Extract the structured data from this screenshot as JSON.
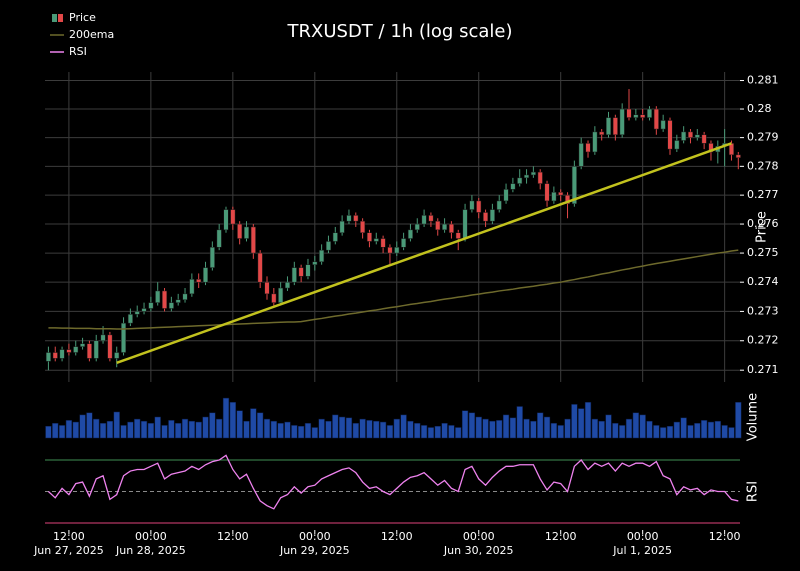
{
  "chart_data": [
    {
      "type": "candlestick",
      "title": "TRXUSDT / 1h (log scale)",
      "ylabel": "Price",
      "log_scale": true,
      "grid": true,
      "up_color": "#4a9a78",
      "down_color": "#e24848",
      "xlim": [
        -0.5,
        101.25
      ],
      "ylim": [
        0.2706,
        0.2813
      ],
      "yticks": [
        0.271,
        0.272,
        0.273,
        0.274,
        0.275,
        0.276,
        0.277,
        0.278,
        0.279,
        0.28,
        0.281
      ],
      "series": [
        {
          "name": "Price",
          "values": [
            [
              0.2713,
              0.2718,
              0.271,
              0.2716
            ],
            [
              0.2716,
              0.2718,
              0.2713,
              0.2714
            ],
            [
              0.2714,
              0.2718,
              0.2713,
              0.2717
            ],
            [
              0.2717,
              0.2719,
              0.2715,
              0.2716
            ],
            [
              0.2716,
              0.272,
              0.2715,
              0.2718
            ],
            [
              0.2718,
              0.2721,
              0.2717,
              0.2719
            ],
            [
              0.2719,
              0.272,
              0.2713,
              0.2714
            ],
            [
              0.2714,
              0.2722,
              0.2713,
              0.272
            ],
            [
              0.272,
              0.2725,
              0.2719,
              0.2722
            ],
            [
              0.2722,
              0.2723,
              0.2713,
              0.2714
            ],
            [
              0.2714,
              0.2718,
              0.2711,
              0.2716
            ],
            [
              0.2716,
              0.2728,
              0.2715,
              0.2726
            ],
            [
              0.2726,
              0.2731,
              0.2725,
              0.2729
            ],
            [
              0.2729,
              0.2732,
              0.2728,
              0.273
            ],
            [
              0.273,
              0.2733,
              0.2729,
              0.2731
            ],
            [
              0.2731,
              0.2735,
              0.273,
              0.2733
            ],
            [
              0.2733,
              0.274,
              0.2732,
              0.2737
            ],
            [
              0.2737,
              0.2738,
              0.273,
              0.2731
            ],
            [
              0.2731,
              0.2735,
              0.273,
              0.2733
            ],
            [
              0.2733,
              0.2736,
              0.2732,
              0.2734
            ],
            [
              0.2734,
              0.2738,
              0.2733,
              0.2736
            ],
            [
              0.2736,
              0.2743,
              0.2735,
              0.2741
            ],
            [
              0.2741,
              0.2743,
              0.2738,
              0.274
            ],
            [
              0.274,
              0.2747,
              0.2739,
              0.2745
            ],
            [
              0.2745,
              0.2754,
              0.2744,
              0.2752
            ],
            [
              0.2752,
              0.276,
              0.2751,
              0.2758
            ],
            [
              0.2758,
              0.2766,
              0.2757,
              0.2765
            ],
            [
              0.2765,
              0.2766,
              0.2758,
              0.276
            ],
            [
              0.276,
              0.2761,
              0.2753,
              0.2755
            ],
            [
              0.2755,
              0.2761,
              0.2754,
              0.2759
            ],
            [
              0.2759,
              0.276,
              0.2748,
              0.275
            ],
            [
              0.275,
              0.2751,
              0.2738,
              0.274
            ],
            [
              0.274,
              0.2742,
              0.2734,
              0.2736
            ],
            [
              0.2736,
              0.2738,
              0.2732,
              0.2733
            ],
            [
              0.2733,
              0.274,
              0.2732,
              0.2738
            ],
            [
              0.2738,
              0.2742,
              0.2737,
              0.274
            ],
            [
              0.274,
              0.2747,
              0.2739,
              0.2745
            ],
            [
              0.2745,
              0.2746,
              0.274,
              0.2742
            ],
            [
              0.2742,
              0.2748,
              0.2741,
              0.2746
            ],
            [
              0.2746,
              0.2749,
              0.2744,
              0.2747
            ],
            [
              0.2747,
              0.2753,
              0.2746,
              0.2751
            ],
            [
              0.2751,
              0.2756,
              0.275,
              0.2754
            ],
            [
              0.2754,
              0.2759,
              0.2753,
              0.2757
            ],
            [
              0.2757,
              0.2763,
              0.2756,
              0.2761
            ],
            [
              0.2761,
              0.2765,
              0.276,
              0.2763
            ],
            [
              0.2763,
              0.2764,
              0.2759,
              0.2761
            ],
            [
              0.2761,
              0.2762,
              0.2755,
              0.2757
            ],
            [
              0.2757,
              0.2758,
              0.2752,
              0.2754
            ],
            [
              0.2754,
              0.2757,
              0.2753,
              0.2755
            ],
            [
              0.2755,
              0.2756,
              0.275,
              0.2752
            ],
            [
              0.2752,
              0.2753,
              0.2746,
              0.275
            ],
            [
              0.275,
              0.2754,
              0.2749,
              0.2752
            ],
            [
              0.2752,
              0.2757,
              0.2751,
              0.2755
            ],
            [
              0.2755,
              0.276,
              0.2754,
              0.2758
            ],
            [
              0.2758,
              0.2762,
              0.2757,
              0.276
            ],
            [
              0.276,
              0.2765,
              0.2759,
              0.2763
            ],
            [
              0.2763,
              0.2764,
              0.2759,
              0.2761
            ],
            [
              0.2761,
              0.2762,
              0.2756,
              0.2758
            ],
            [
              0.2758,
              0.2762,
              0.2757,
              0.276
            ],
            [
              0.276,
              0.2761,
              0.2755,
              0.2757
            ],
            [
              0.2757,
              0.2758,
              0.2751,
              0.2755
            ],
            [
              0.2755,
              0.2767,
              0.2754,
              0.2765
            ],
            [
              0.2765,
              0.277,
              0.2764,
              0.2768
            ],
            [
              0.2768,
              0.2769,
              0.2762,
              0.2764
            ],
            [
              0.2764,
              0.2765,
              0.2759,
              0.2761
            ],
            [
              0.2761,
              0.2767,
              0.276,
              0.2765
            ],
            [
              0.2765,
              0.277,
              0.2764,
              0.2768
            ],
            [
              0.2768,
              0.2774,
              0.2767,
              0.2772
            ],
            [
              0.2772,
              0.2776,
              0.2771,
              0.2774
            ],
            [
              0.2774,
              0.2779,
              0.2773,
              0.2776
            ],
            [
              0.2776,
              0.2779,
              0.2774,
              0.2777
            ],
            [
              0.2777,
              0.278,
              0.2776,
              0.2778
            ],
            [
              0.2778,
              0.2779,
              0.2772,
              0.2774
            ],
            [
              0.2774,
              0.2775,
              0.2766,
              0.2768
            ],
            [
              0.2768,
              0.2773,
              0.2767,
              0.2771
            ],
            [
              0.2771,
              0.2772,
              0.2768,
              0.277
            ],
            [
              0.277,
              0.2771,
              0.2762,
              0.2767
            ],
            [
              0.2767,
              0.2782,
              0.2766,
              0.278
            ],
            [
              0.278,
              0.279,
              0.2779,
              0.2788
            ],
            [
              0.2788,
              0.2789,
              0.2783,
              0.2785
            ],
            [
              0.2785,
              0.2794,
              0.2784,
              0.2792
            ],
            [
              0.2792,
              0.2793,
              0.2789,
              0.2791
            ],
            [
              0.2791,
              0.2799,
              0.279,
              0.2797
            ],
            [
              0.2797,
              0.2798,
              0.2789,
              0.2791
            ],
            [
              0.2791,
              0.2802,
              0.279,
              0.28
            ],
            [
              0.28,
              0.2807,
              0.2796,
              0.2797
            ],
            [
              0.2797,
              0.28,
              0.2796,
              0.2798
            ],
            [
              0.2798,
              0.28,
              0.2796,
              0.2797
            ],
            [
              0.2797,
              0.2801,
              0.2796,
              0.28
            ],
            [
              0.28,
              0.2801,
              0.2791,
              0.2793
            ],
            [
              0.2793,
              0.2798,
              0.2792,
              0.2796
            ],
            [
              0.2796,
              0.2797,
              0.2784,
              0.2786
            ],
            [
              0.2786,
              0.2791,
              0.2785,
              0.2789
            ],
            [
              0.2789,
              0.2794,
              0.2788,
              0.2792
            ],
            [
              0.2792,
              0.2793,
              0.2788,
              0.279
            ],
            [
              0.279,
              0.2793,
              0.2789,
              0.2791
            ],
            [
              0.2791,
              0.2792,
              0.2786,
              0.2788
            ],
            [
              0.2788,
              0.2789,
              0.2782,
              0.2785
            ],
            [
              0.2785,
              0.2789,
              0.2781,
              0.2787
            ],
            [
              0.2787,
              0.2793,
              0.278,
              0.2788
            ],
            [
              0.2788,
              0.2789,
              0.2782,
              0.2784
            ],
            [
              0.2784,
              0.2785,
              0.2779,
              0.2783
            ]
          ]
        },
        {
          "name": "200ema",
          "color": "#6e6a2c",
          "values": [
            0.27244,
            0.27244,
            0.27243,
            0.27243,
            0.27242,
            0.27242,
            0.27242,
            0.27241,
            0.27241,
            0.27241,
            0.2724,
            0.2724,
            0.27241,
            0.27242,
            0.27243,
            0.27244,
            0.27245,
            0.27246,
            0.27247,
            0.27248,
            0.27249,
            0.2725,
            0.27251,
            0.27252,
            0.27253,
            0.27254,
            0.27255,
            0.27256,
            0.27257,
            0.27258,
            0.27259,
            0.2726,
            0.27261,
            0.27262,
            0.27263,
            0.27264,
            0.27264,
            0.27265,
            0.27269,
            0.27273,
            0.27276,
            0.2728,
            0.27284,
            0.27287,
            0.27291,
            0.27294,
            0.27298,
            0.27302,
            0.27305,
            0.27309,
            0.27313,
            0.27316,
            0.2732,
            0.27324,
            0.27327,
            0.27331,
            0.27334,
            0.27338,
            0.27342,
            0.27345,
            0.27349,
            0.27352,
            0.27356,
            0.27359,
            0.27363,
            0.27366,
            0.2737,
            0.27373,
            0.27376,
            0.2738,
            0.27383,
            0.27386,
            0.2739,
            0.27393,
            0.27397,
            0.274,
            0.27405,
            0.27409,
            0.27414,
            0.27418,
            0.27423,
            0.27428,
            0.27432,
            0.27437,
            0.27442,
            0.27446,
            0.27451,
            0.27455,
            0.2746,
            0.27464,
            0.27468,
            0.27472,
            0.27476,
            0.2748,
            0.27484,
            0.27488,
            0.27492,
            0.27496,
            0.275,
            0.27503,
            0.27507,
            0.2751
          ]
        }
      ],
      "trendline": {
        "color": "#c2c21e",
        "x": [
          10,
          100
        ],
        "y": [
          0.27125,
          0.2788
        ]
      }
    },
    {
      "type": "bar",
      "ylabel": "Volume",
      "color": "#1f4aa6",
      "ylim": [
        0,
        100
      ],
      "xlim": [
        -0.5,
        101.25
      ],
      "values": [
        28,
        35,
        30,
        42,
        38,
        55,
        60,
        45,
        35,
        40,
        62,
        30,
        38,
        45,
        40,
        35,
        50,
        30,
        42,
        35,
        45,
        40,
        38,
        50,
        60,
        45,
        95,
        85,
        65,
        40,
        70,
        60,
        45,
        40,
        35,
        38,
        30,
        28,
        35,
        25,
        45,
        40,
        55,
        50,
        48,
        35,
        45,
        42,
        40,
        38,
        30,
        45,
        55,
        40,
        35,
        30,
        25,
        28,
        35,
        30,
        25,
        65,
        60,
        50,
        45,
        40,
        42,
        55,
        48,
        75,
        45,
        40,
        60,
        50,
        35,
        30,
        45,
        80,
        70,
        85,
        45,
        40,
        55,
        35,
        30,
        45,
        60,
        55,
        40,
        30,
        25,
        28,
        38,
        48,
        30,
        35,
        42,
        38,
        40,
        30,
        25,
        85
      ]
    },
    {
      "type": "line",
      "ylabel": "RSI",
      "ylim": [
        26.8,
        73.2
      ],
      "xlim": [
        -0.5,
        101.25
      ],
      "levels": [
        {
          "value": 70,
          "color": "#3f8f55"
        },
        {
          "value": 50,
          "color": "#8a8a8a"
        },
        {
          "value": 30,
          "color": "#e0457b"
        }
      ],
      "series": [
        {
          "name": "RSI",
          "color": "#ee82ee",
          "values": [
            50,
            46,
            52,
            48,
            55,
            56,
            47,
            58,
            60,
            45,
            48,
            60,
            63,
            64,
            64,
            66,
            68,
            58,
            61,
            62,
            63,
            66,
            64,
            67,
            69,
            70,
            73,
            64,
            58,
            61,
            52,
            44,
            41,
            39,
            46,
            48,
            53,
            49,
            53,
            54,
            58,
            60,
            62,
            64,
            65,
            62,
            56,
            52,
            53,
            50,
            48,
            52,
            56,
            59,
            60,
            62,
            58,
            54,
            57,
            52,
            50,
            64,
            66,
            58,
            54,
            59,
            63,
            66,
            66,
            67,
            67,
            67,
            58,
            51,
            56,
            55,
            50,
            66,
            70,
            64,
            68,
            66,
            68,
            63,
            68,
            66,
            68,
            68,
            66,
            69,
            60,
            58,
            48,
            53,
            51,
            52,
            48,
            51,
            50,
            50,
            45,
            44
          ]
        }
      ],
      "xticks": [
        {
          "value": 3,
          "label": "12:00",
          "date": "Jun 27, 2025"
        },
        {
          "value": 15,
          "label": "00:00",
          "date": "Jun 28, 2025"
        },
        {
          "value": 27,
          "label": "12:00"
        },
        {
          "value": 39,
          "label": "00:00",
          "date": "Jun 29, 2025"
        },
        {
          "value": 51,
          "label": "12:00"
        },
        {
          "value": 63,
          "label": "00:00",
          "date": "Jun 30, 2025"
        },
        {
          "value": 75,
          "label": "12:00"
        },
        {
          "value": 87,
          "label": "00:00",
          "date": "Jul 1, 2025"
        },
        {
          "value": 99,
          "label": "12:00"
        }
      ]
    }
  ]
}
